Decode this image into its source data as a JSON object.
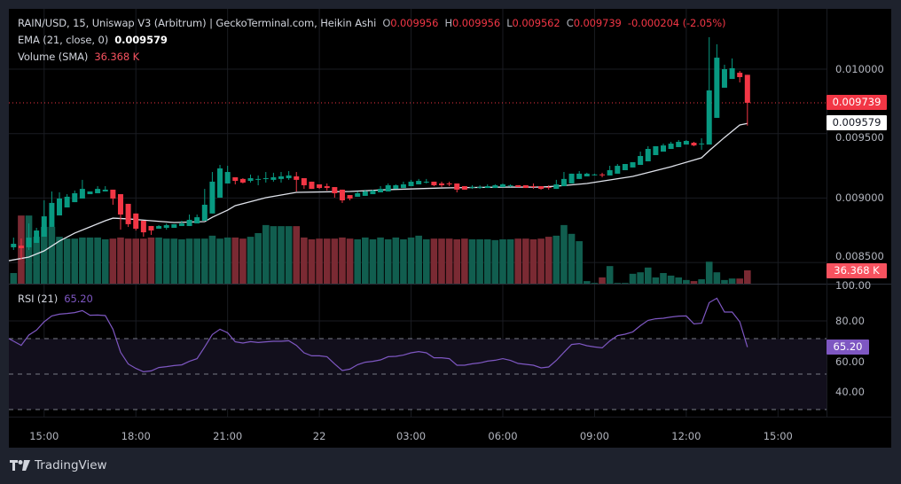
{
  "legend": {
    "title": "RAIN/USD, 15, Uniswap V3 (Arbitrum) | GeckoTerminal.com, Heikin Ashi",
    "o_label": "O",
    "o": "0.009956",
    "h_label": "H",
    "h": "0.009956",
    "l_label": "L",
    "l": "0.009562",
    "c_label": "C",
    "c": "0.009739",
    "change": "-0.000204 (-2.05%)",
    "ema_label": "EMA (21, close, 0)",
    "ema_value": "0.009579",
    "volume_label": "Volume (SMA)",
    "volume_value": "36.368 K",
    "rsi_label": "RSI (21)",
    "rsi_value": "65.20"
  },
  "price_axis": [
    "0.010000",
    "0.009500",
    "0.009000",
    "0.008500"
  ],
  "price_axis_values": [
    0.01,
    0.0095,
    0.009,
    0.0085
  ],
  "rsi_axis": [
    "100.00",
    "80.00",
    "60.00",
    "40.00"
  ],
  "rsi_axis_values": [
    100,
    80,
    60,
    40
  ],
  "badges": {
    "last_price": "0.009739",
    "ema": "0.009579",
    "volume": "36.368 K",
    "rsi": "65.20"
  },
  "time_axis": [
    "15:00",
    "18:00",
    "21:00",
    "22",
    "03:00",
    "06:00",
    "09:00",
    "12:00",
    "15:00"
  ],
  "footer": {
    "brand": "TradingView"
  },
  "colors": {
    "up": "#089981",
    "down": "#f23645",
    "vol_up": "#115e4f",
    "vol_down": "#7a2a33",
    "ema": "#e0e3eb",
    "rsi": "#7e57c2",
    "rsi_band": "#120f1c",
    "background": "#000000",
    "frame": "#1e222d"
  },
  "chart_data": {
    "type": "candlestick",
    "style": "Heikin Ashi",
    "symbol": "RAIN/USD",
    "interval": "15",
    "price_range": [
      0.00842,
      0.0103
    ],
    "rsi_range": [
      28,
      101
    ],
    "rsi_bands": [
      70,
      50,
      30
    ],
    "grid": true,
    "candle_fields": [
      "time",
      "open",
      "high",
      "low",
      "close",
      "volume_k"
    ],
    "candles": [
      [
        "14:00",
        0.008618,
        0.008693,
        0.008597,
        0.008645,
        29
      ],
      [
        "14:15",
        0.008631,
        0.008686,
        0.008521,
        0.008611,
        186
      ],
      [
        "14:30",
        0.008618,
        0.008803,
        0.008597,
        0.008693,
        186
      ],
      [
        "14:45",
        0.008652,
        0.008769,
        0.008652,
        0.008748,
        128
      ],
      [
        "15:00",
        0.0087,
        0.008982,
        0.0087,
        0.008858,
        155
      ],
      [
        "15:15",
        0.008776,
        0.009051,
        0.008776,
        0.008962,
        155
      ],
      [
        "15:30",
        0.008865,
        0.009044,
        0.008865,
        0.008996,
        128
      ],
      [
        "15:45",
        0.008927,
        0.00903,
        0.008927,
        0.00901,
        123
      ],
      [
        "16:00",
        0.008968,
        0.009058,
        0.008968,
        0.009037,
        123
      ],
      [
        "16:15",
        0.008996,
        0.009141,
        0.008996,
        0.009071,
        126
      ],
      [
        "16:30",
        0.00903,
        0.009051,
        0.00903,
        0.009051,
        126
      ],
      [
        "16:45",
        0.009037,
        0.009092,
        0.009037,
        0.009071,
        126
      ],
      [
        "17:00",
        0.009051,
        0.009092,
        0.009051,
        0.009065,
        121
      ],
      [
        "17:15",
        0.009065,
        0.009065,
        0.008948,
        0.008996,
        123
      ],
      [
        "17:30",
        0.00903,
        0.00903,
        0.008755,
        0.008872,
        126
      ],
      [
        "17:45",
        0.008955,
        0.008955,
        0.008776,
        0.008797,
        123
      ],
      [
        "18:00",
        0.00888,
        0.00888,
        0.008748,
        0.008762,
        123
      ],
      [
        "18:15",
        0.008824,
        0.008824,
        0.0087,
        0.008734,
        123
      ],
      [
        "18:30",
        0.008783,
        0.008783,
        0.008714,
        0.008748,
        126
      ],
      [
        "18:45",
        0.008762,
        0.00879,
        0.008762,
        0.008783,
        126
      ],
      [
        "19:00",
        0.008769,
        0.008803,
        0.008755,
        0.00879,
        123
      ],
      [
        "19:15",
        0.008769,
        0.008797,
        0.008769,
        0.008797,
        123
      ],
      [
        "19:30",
        0.008783,
        0.008824,
        0.008783,
        0.008803,
        121
      ],
      [
        "19:45",
        0.008783,
        0.008872,
        0.008783,
        0.008831,
        123
      ],
      [
        "20:00",
        0.008803,
        0.008872,
        0.008803,
        0.008851,
        123
      ],
      [
        "20:15",
        0.008824,
        0.009071,
        0.008824,
        0.008948,
        123
      ],
      [
        "20:30",
        0.00888,
        0.009202,
        0.00888,
        0.009127,
        131
      ],
      [
        "20:45",
        0.009003,
        0.009257,
        0.009003,
        0.00923,
        123
      ],
      [
        "21:00",
        0.009113,
        0.00925,
        0.009113,
        0.009202,
        126
      ],
      [
        "21:15",
        0.009161,
        0.009161,
        0.009106,
        0.009133,
        126
      ],
      [
        "21:30",
        0.009148,
        0.009154,
        0.009113,
        0.00912,
        123
      ],
      [
        "21:45",
        0.009133,
        0.009182,
        0.00912,
        0.009154,
        128
      ],
      [
        "22:00",
        0.009144,
        0.009175,
        0.009099,
        0.009148,
        138
      ],
      [
        "22:15",
        0.009148,
        0.009202,
        0.00912,
        0.009154,
        160
      ],
      [
        "22:30",
        0.009141,
        0.009196,
        0.009127,
        0.009161,
        157
      ],
      [
        "22:45",
        0.009148,
        0.009202,
        0.00912,
        0.009168,
        157
      ],
      [
        "23:00",
        0.009154,
        0.009209,
        0.009141,
        0.009175,
        157
      ],
      [
        "23:15",
        0.009168,
        0.009202,
        0.009051,
        0.009141,
        157
      ],
      [
        "23:30",
        0.009154,
        0.009154,
        0.009071,
        0.009099,
        126
      ],
      [
        "23:45",
        0.009127,
        0.009127,
        0.009071,
        0.009071,
        121
      ],
      [
        "00:00",
        0.009106,
        0.009106,
        0.009071,
        0.009078,
        123
      ],
      [
        "00:15",
        0.009092,
        0.009113,
        0.009058,
        0.009078,
        123
      ],
      [
        "00:30",
        0.009085,
        0.009085,
        0.009003,
        0.009037,
        123
      ],
      [
        "00:45",
        0.009065,
        0.009065,
        0.008962,
        0.008982,
        126
      ],
      [
        "01:00",
        0.009023,
        0.009023,
        0.008982,
        0.008996,
        123
      ],
      [
        "01:15",
        0.00901,
        0.009051,
        0.00901,
        0.009037,
        121
      ],
      [
        "01:30",
        0.009017,
        0.009065,
        0.009017,
        0.009051,
        126
      ],
      [
        "01:45",
        0.00903,
        0.009065,
        0.00903,
        0.009058,
        121
      ],
      [
        "02:00",
        0.009044,
        0.009092,
        0.009044,
        0.009071,
        126
      ],
      [
        "02:15",
        0.009051,
        0.009113,
        0.009051,
        0.009099,
        121
      ],
      [
        "02:30",
        0.009071,
        0.009106,
        0.009071,
        0.009099,
        126
      ],
      [
        "02:45",
        0.009078,
        0.009127,
        0.009078,
        0.009106,
        121
      ],
      [
        "03:00",
        0.009092,
        0.009141,
        0.009092,
        0.009127,
        126
      ],
      [
        "03:15",
        0.009106,
        0.009148,
        0.009106,
        0.009133,
        131
      ],
      [
        "03:30",
        0.009125,
        0.009148,
        0.009113,
        0.009127,
        121
      ],
      [
        "03:45",
        0.009127,
        0.009127,
        0.009092,
        0.009099,
        123
      ],
      [
        "04:00",
        0.009113,
        0.009127,
        0.009085,
        0.009099,
        123
      ],
      [
        "04:15",
        0.009113,
        0.009127,
        0.009092,
        0.009111,
        123
      ],
      [
        "04:30",
        0.009113,
        0.009113,
        0.009044,
        0.009065,
        121
      ],
      [
        "04:45",
        0.009092,
        0.009092,
        0.009065,
        0.009065,
        123
      ],
      [
        "05:00",
        0.009084,
        0.009099,
        0.009071,
        0.009086,
        121
      ],
      [
        "05:15",
        0.009084,
        0.009099,
        0.009071,
        0.009086,
        121
      ],
      [
        "05:30",
        0.009078,
        0.009106,
        0.009078,
        0.009092,
        121
      ],
      [
        "05:45",
        0.009078,
        0.009106,
        0.009078,
        0.009099,
        119
      ],
      [
        "06:00",
        0.009085,
        0.009113,
        0.009085,
        0.009106,
        121
      ],
      [
        "06:15",
        0.009096,
        0.009106,
        0.009085,
        0.009098,
        121
      ],
      [
        "06:30",
        0.009099,
        0.009099,
        0.009085,
        0.009085,
        123
      ],
      [
        "06:45",
        0.009099,
        0.009099,
        0.009078,
        0.009078,
        123
      ],
      [
        "07:00",
        0.009092,
        0.009113,
        0.009071,
        0.009088,
        121
      ],
      [
        "07:15",
        0.009092,
        0.009092,
        0.009065,
        0.009071,
        123
      ],
      [
        "07:30",
        0.009085,
        0.009099,
        0.009065,
        0.009082,
        128
      ],
      [
        "07:45",
        0.009071,
        0.009141,
        0.009071,
        0.009106,
        131
      ],
      [
        "08:00",
        0.009092,
        0.009202,
        0.009092,
        0.009148,
        160
      ],
      [
        "08:15",
        0.009113,
        0.009189,
        0.009113,
        0.009189,
        136
      ],
      [
        "08:30",
        0.009148,
        0.009209,
        0.009148,
        0.009189,
        116
      ],
      [
        "08:45",
        0.009168,
        0.009196,
        0.009168,
        0.009189,
        7
      ],
      [
        "09:00",
        0.00918,
        0.009189,
        0.009175,
        0.009183,
        2
      ],
      [
        "09:15",
        0.009183,
        0.009196,
        0.009161,
        0.00918,
        17
      ],
      [
        "09:30",
        0.009175,
        0.00925,
        0.009175,
        0.009216,
        48
      ],
      [
        "09:45",
        0.009189,
        0.009264,
        0.009189,
        0.00925,
        2
      ],
      [
        "10:00",
        0.009216,
        0.009264,
        0.009216,
        0.009264,
        2
      ],
      [
        "10:15",
        0.009237,
        0.009278,
        0.009237,
        0.009278,
        27
      ],
      [
        "10:30",
        0.009257,
        0.00936,
        0.009257,
        0.009326,
        31
      ],
      [
        "10:45",
        0.009285,
        0.009402,
        0.009285,
        0.009381,
        44
      ],
      [
        "11:00",
        0.009333,
        0.009402,
        0.009333,
        0.009402,
        17
      ],
      [
        "11:15",
        0.00936,
        0.009422,
        0.00936,
        0.009408,
        29
      ],
      [
        "11:30",
        0.009381,
        0.009436,
        0.009381,
        0.009422,
        22
      ],
      [
        "11:45",
        0.009395,
        0.00945,
        0.009395,
        0.009436,
        17
      ],
      [
        "12:00",
        0.009415,
        0.00945,
        0.009415,
        0.009443,
        10
      ],
      [
        "12:15",
        0.009429,
        0.009436,
        0.009402,
        0.009408,
        7
      ],
      [
        "12:30",
        0.009421,
        0.009464,
        0.009374,
        0.009423,
        12
      ],
      [
        "12:45",
        0.009415,
        0.010248,
        0.009415,
        0.009835,
        60
      ],
      [
        "13:00",
        0.009622,
        0.010193,
        0.009622,
        0.010089,
        31
      ],
      [
        "13:15",
        0.009856,
        0.010034,
        0.009856,
        0.01,
        10
      ],
      [
        "13:30",
        0.009924,
        0.010083,
        0.009924,
        0.010007,
        14
      ],
      [
        "13:45",
        0.009972,
        0.009986,
        0.009897,
        0.009938,
        14
      ],
      [
        "14:00",
        0.009956,
        0.009956,
        0.009562,
        0.009739,
        36.368
      ]
    ],
    "ema_21": [
      [
        "14:00",
        0.008514
      ],
      [
        "14:30",
        0.008542
      ],
      [
        "15:00",
        0.00859
      ],
      [
        "15:30",
        0.008666
      ],
      [
        "16:00",
        0.008728
      ],
      [
        "16:30",
        0.008776
      ],
      [
        "17:00",
        0.008824
      ],
      [
        "17:15",
        0.008844
      ],
      [
        "17:45",
        0.008838
      ],
      [
        "18:30",
        0.008824
      ],
      [
        "19:15",
        0.00881
      ],
      [
        "20:15",
        0.008817
      ],
      [
        "20:30",
        0.008851
      ],
      [
        "21:00",
        0.008906
      ],
      [
        "21:15",
        0.008941
      ],
      [
        "22:15",
        0.009003
      ],
      [
        "23:15",
        0.009044
      ],
      [
        "01:00",
        0.009051
      ],
      [
        "02:15",
        0.009065
      ],
      [
        "04:00",
        0.009078
      ],
      [
        "06:00",
        0.009085
      ],
      [
        "07:15",
        0.009085
      ],
      [
        "07:45",
        0.009092
      ],
      [
        "08:45",
        0.009113
      ],
      [
        "09:30",
        0.00914
      ],
      [
        "10:15",
        0.009168
      ],
      [
        "11:30",
        0.009243
      ],
      [
        "12:30",
        0.009312
      ],
      [
        "12:45",
        0.009367
      ],
      [
        "13:15",
        0.00947
      ],
      [
        "13:45",
        0.009567
      ],
      [
        "14:00",
        0.009579
      ]
    ],
    "rsi_21": [
      70,
      66.2,
      72,
      74.8,
      79.5,
      82.8,
      83.8,
      84.2,
      84.7,
      85.8,
      83.2,
      83.3,
      83,
      75.3,
      62.3,
      55.7,
      53.2,
      51.3,
      51.8,
      53.7,
      54.2,
      54.8,
      55.2,
      57.2,
      58.7,
      65.3,
      72.3,
      75.3,
      73.3,
      68.2,
      67.5,
      68.3,
      67.8,
      68.2,
      68.5,
      68.5,
      68.8,
      66.2,
      62,
      60.3,
      60.3,
      59.8,
      55.7,
      52,
      52.8,
      55.3,
      56.7,
      57.2,
      58,
      59.8,
      60,
      60.7,
      62,
      62.7,
      62,
      59.2,
      59.2,
      58.7,
      55,
      55,
      55.8,
      56.3,
      57.3,
      57.8,
      58.7,
      57.7,
      56,
      55.5,
      55,
      53.5,
      54,
      57.7,
      62.3,
      66.7,
      67.2,
      66,
      65.3,
      64.8,
      68.7,
      71.7,
      72.5,
      73.8,
      77.3,
      80.3,
      81.2,
      81.5,
      82.2,
      82.7,
      82.8,
      78.3,
      78.7,
      90.3,
      92.8,
      85,
      85,
      79.5,
      65.2
    ]
  }
}
